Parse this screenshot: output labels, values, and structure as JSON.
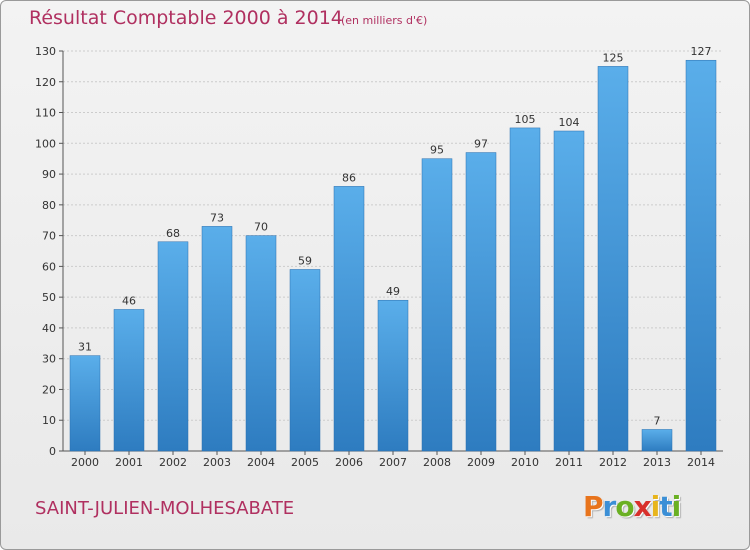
{
  "header": {
    "title": "Résultat Comptable 2000 à 2014",
    "subtitle": "(en milliers d'€)"
  },
  "footer": {
    "place": "SAINT-JULIEN-MOLHESABATE",
    "logo_letters": [
      {
        "char": "P",
        "color": "#e8741c"
      },
      {
        "char": "r",
        "color": "#3b8fd6"
      },
      {
        "char": "o",
        "color": "#6ab023"
      },
      {
        "char": "x",
        "color": "#d8302b"
      },
      {
        "char": "i",
        "color": "#e8b51c"
      },
      {
        "char": "t",
        "color": "#3b8fd6"
      },
      {
        "char": "i",
        "color": "#6ab023"
      }
    ]
  },
  "colors": {
    "bar_light": "#5aaeea",
    "bar_dark": "#2e7cc0",
    "grid": "#cccccc",
    "text_accent": "#b03060"
  },
  "chart_data": {
    "type": "bar",
    "title": "Résultat Comptable 2000 à 2014",
    "subtitle": "(en milliers d'€)",
    "xlabel": "",
    "ylabel": "",
    "categories": [
      "2000",
      "2001",
      "2002",
      "2003",
      "2004",
      "2005",
      "2006",
      "2007",
      "2008",
      "2009",
      "2010",
      "2011",
      "2012",
      "2013",
      "2014"
    ],
    "values": [
      31,
      46,
      68,
      73,
      70,
      59,
      86,
      49,
      95,
      97,
      105,
      104,
      125,
      7,
      127
    ],
    "ylim": [
      0,
      130
    ],
    "yticks": [
      0,
      10,
      20,
      30,
      40,
      50,
      60,
      70,
      80,
      90,
      100,
      110,
      120,
      130
    ],
    "grid": true,
    "legend": "none"
  }
}
